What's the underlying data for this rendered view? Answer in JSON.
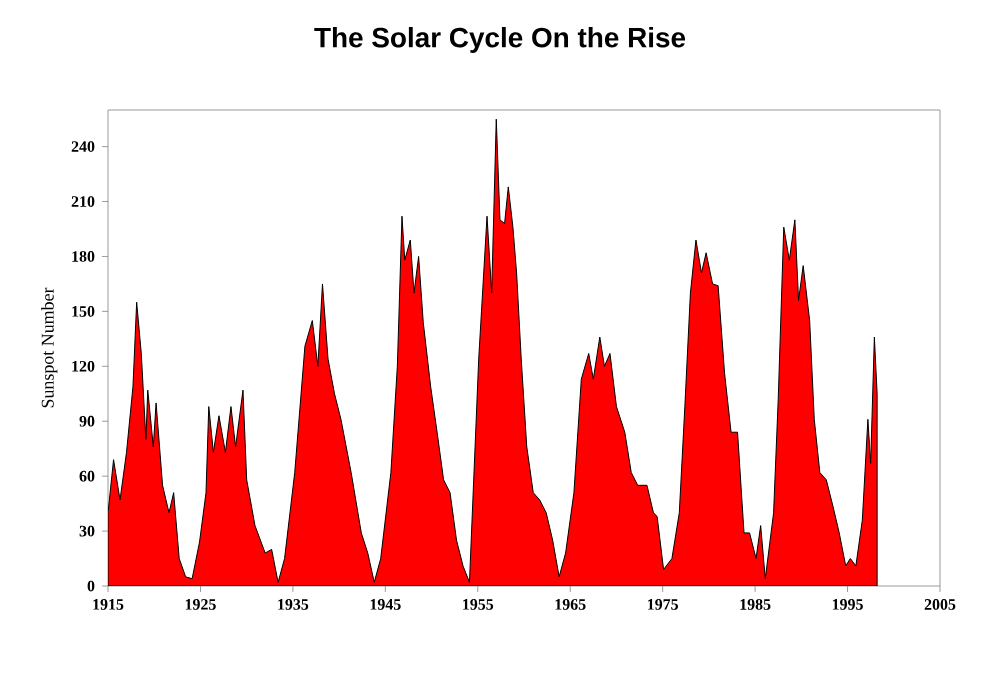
{
  "chart_data": {
    "type": "area",
    "title": "The Solar Cycle On the Rise",
    "ylabel": "Sunspot Number",
    "xlim": [
      1915,
      2005
    ],
    "xticks": [
      1915,
      1925,
      1935,
      1945,
      1955,
      1965,
      1975,
      1985,
      1995,
      2005
    ],
    "ylim": [
      0,
      260
    ],
    "yticks": [
      0,
      30,
      60,
      90,
      120,
      150,
      180,
      210,
      240
    ],
    "grid": false,
    "series": [
      {
        "color": "#ff0000",
        "x": [
          1915.0,
          1915.6,
          1916.3,
          1917.0,
          1917.7,
          1918.1,
          1918.6,
          1919.1,
          1919.3,
          1919.9,
          1920.2,
          1920.9,
          1921.6,
          1922.1,
          1922.7,
          1923.4,
          1924.1,
          1924.9,
          1925.6,
          1925.9,
          1926.4,
          1927.0,
          1927.7,
          1928.3,
          1928.8,
          1929.6,
          1930.0,
          1930.9,
          1932.0,
          1932.7,
          1933.4,
          1934.1,
          1935.2,
          1936.3,
          1937.1,
          1937.7,
          1938.2,
          1938.8,
          1939.5,
          1940.2,
          1941.3,
          1942.4,
          1943.1,
          1943.8,
          1944.5,
          1945.6,
          1946.3,
          1946.8,
          1947.1,
          1947.7,
          1948.1,
          1948.6,
          1949.1,
          1949.9,
          1950.6,
          1951.3,
          1952.0,
          1952.7,
          1953.4,
          1954.1,
          1955.1,
          1956.0,
          1956.5,
          1957.0,
          1957.4,
          1957.9,
          1958.3,
          1958.8,
          1959.2,
          1959.7,
          1960.3,
          1961.0,
          1961.7,
          1962.4,
          1963.1,
          1963.8,
          1964.5,
          1965.4,
          1966.2,
          1967.0,
          1967.5,
          1968.2,
          1968.7,
          1969.3,
          1970.0,
          1970.9,
          1971.6,
          1972.3,
          1973.3,
          1974.0,
          1974.4,
          1975.1,
          1976.0,
          1976.8,
          1977.4,
          1978.0,
          1978.6,
          1979.2,
          1979.7,
          1980.4,
          1981.0,
          1981.7,
          1982.4,
          1983.1,
          1983.8,
          1984.4,
          1985.1,
          1985.6,
          1986.1,
          1987.0,
          1987.5,
          1988.1,
          1988.7,
          1989.3,
          1989.7,
          1990.2,
          1990.9,
          1991.4,
          1992.0,
          1992.7,
          1993.4,
          1994.1,
          1994.8,
          1995.3,
          1995.9,
          1996.6,
          1997.2,
          1997.5,
          1997.9,
          1998.2
        ],
        "values": [
          40,
          69,
          47,
          73,
          109,
          155,
          127,
          80,
          107,
          76,
          100,
          55,
          40,
          51,
          15,
          5,
          4,
          24,
          51,
          98,
          73,
          93,
          73,
          98,
          76,
          107,
          58,
          33,
          18,
          20,
          2,
          15,
          62,
          131,
          145,
          120,
          165,
          124,
          105,
          91,
          62,
          29,
          18,
          2,
          15,
          62,
          120,
          202,
          178,
          189,
          160,
          180,
          144,
          109,
          84,
          58,
          51,
          25,
          11,
          2,
          124,
          202,
          160,
          255,
          200,
          198,
          218,
          196,
          171,
          124,
          76,
          51,
          47,
          40,
          25,
          5,
          18,
          51,
          113,
          127,
          113,
          136,
          120,
          127,
          98,
          84,
          62,
          55,
          55,
          40,
          38,
          9,
          15,
          40,
          98,
          160,
          189,
          171,
          182,
          165,
          164,
          116,
          84,
          84,
          29,
          29,
          15,
          33,
          4,
          40,
          102,
          196,
          178,
          200,
          156,
          175,
          145,
          91,
          62,
          58,
          44,
          29,
          11,
          15,
          11,
          36,
          91,
          67,
          136,
          105
        ]
      }
    ]
  }
}
